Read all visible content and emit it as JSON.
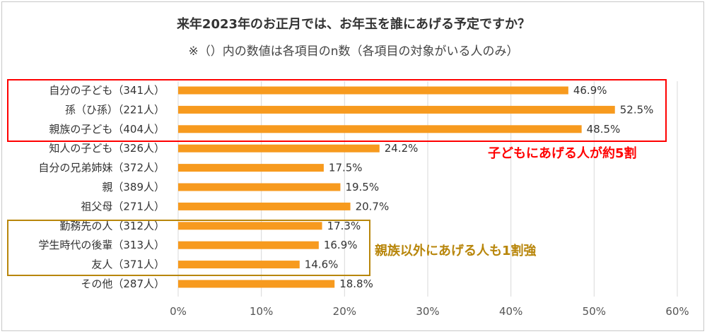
{
  "header": {
    "title": "来年2023年のお正月では、お年玉を誰にあげる予定ですか？",
    "subtitle": "※（）内の数値は各項目のn数（各項目の対象がいる人のみ）"
  },
  "annotations": {
    "children": "子どもにあげる人が約5割",
    "non_relatives": "親族以外にあげる人も1割強"
  },
  "colors": {
    "bar": "#f79a1e",
    "highlight_red": "#ff0000",
    "highlight_gold": "#b8860b",
    "grid": "#d9d9d9"
  },
  "chart_data": {
    "type": "bar",
    "orientation": "horizontal",
    "title": "来年2023年のお正月では、お年玉を誰にあげる予定ですか？",
    "subtitle": "※（）内の数値は各項目のn数（各項目の対象がいる人のみ）",
    "categories": [
      "自分の子ども（341人）",
      "孫（ひ孫）（221人）",
      "親族の子ども（404人）",
      "知人の子ども（326人）",
      "自分の兄弟姉妹（372人）",
      "親（389人）",
      "祖父母（271人）",
      "勤務先の人（312人）",
      "学生時代の後輩（313人）",
      "友人（371人）",
      "その他（287人）"
    ],
    "values": [
      46.9,
      52.5,
      48.5,
      24.2,
      17.5,
      19.5,
      20.7,
      17.3,
      16.9,
      14.6,
      18.8
    ],
    "value_labels": [
      "46.9%",
      "52.5%",
      "48.5%",
      "24.2%",
      "17.5%",
      "19.5%",
      "20.7%",
      "17.3%",
      "16.9%",
      "14.6%",
      "18.8%"
    ],
    "xlim": [
      0,
      60
    ],
    "x_ticks": [
      "0%",
      "10%",
      "20%",
      "30%",
      "40%",
      "50%",
      "60%"
    ],
    "grid": true,
    "highlight_groups": [
      {
        "rows": [
          0,
          2
        ],
        "color": "red",
        "label": "子どもにあげる人が約5割"
      },
      {
        "rows": [
          7,
          9
        ],
        "color": "gold",
        "label": "親族以外にあげる人も1割強"
      }
    ]
  }
}
